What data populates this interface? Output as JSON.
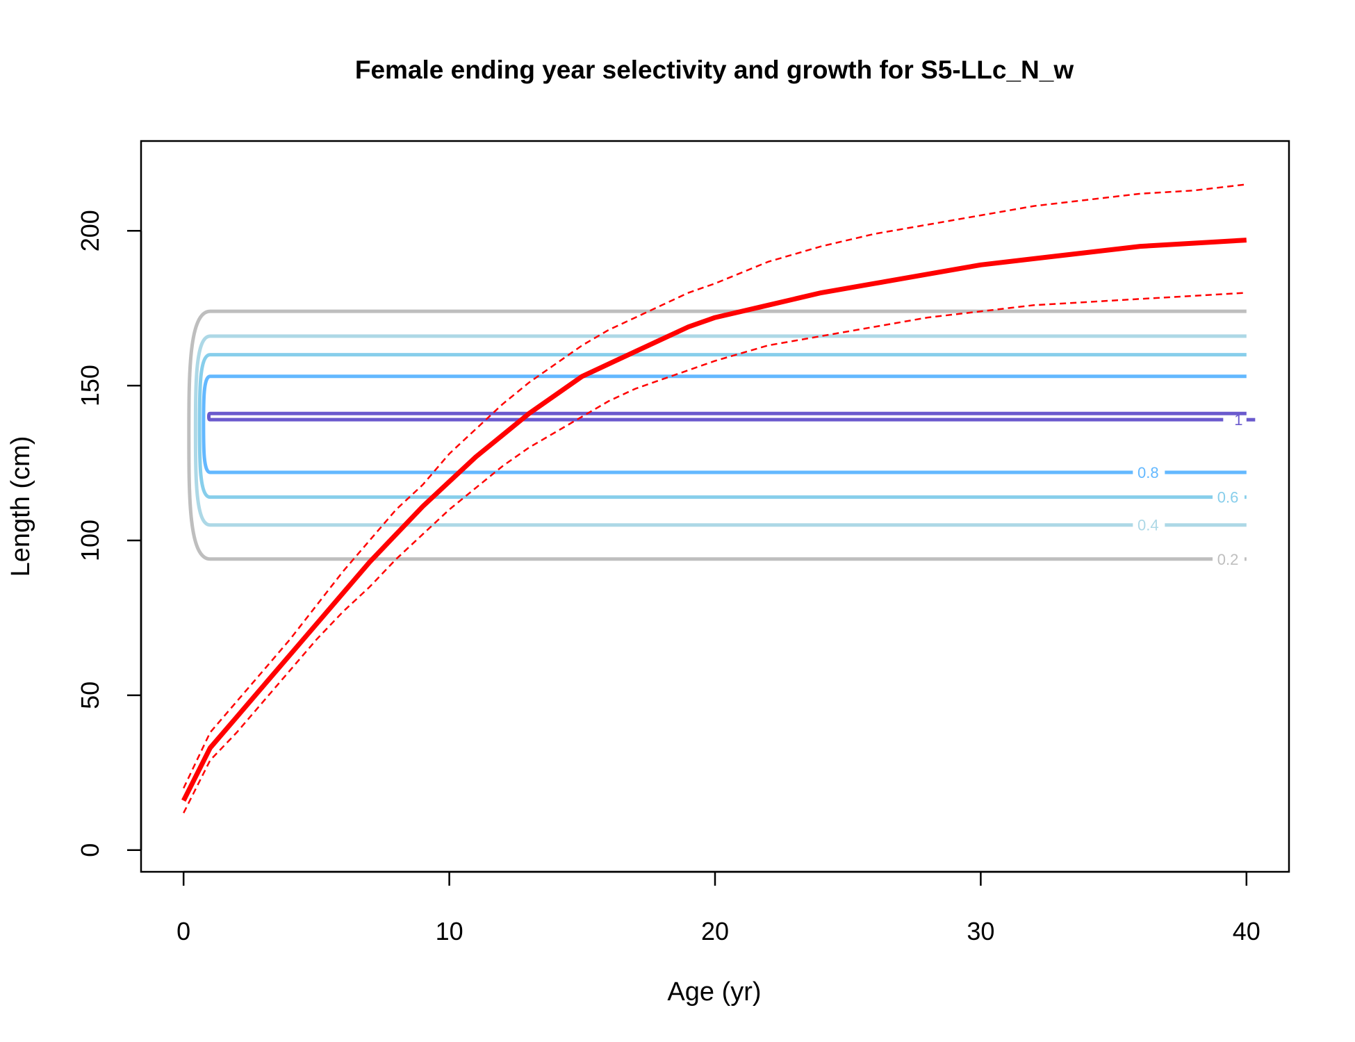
{
  "chart_data": {
    "type": "line",
    "title": "Female ending year selectivity and growth for S5-LLc_N_w",
    "xlabel": "Age (yr)",
    "ylabel": "Length (cm)",
    "xlim": [
      -1.6,
      41.6
    ],
    "ylim": [
      -7,
      229
    ],
    "x_ticks": [
      0,
      10,
      20,
      30,
      40
    ],
    "y_ticks": [
      0,
      50,
      100,
      150,
      200
    ],
    "grid": false,
    "legend": "none",
    "growth": {
      "color": "#ff0000",
      "mean": {
        "x": [
          0,
          1,
          2,
          3,
          4,
          5,
          6,
          7,
          8,
          9,
          10,
          11,
          12,
          13,
          14,
          15,
          16,
          17,
          18,
          19,
          20,
          22,
          24,
          26,
          28,
          30,
          32,
          34,
          36,
          38,
          40
        ],
        "y": [
          16,
          33,
          43,
          53,
          63,
          73,
          83,
          93,
          102,
          111,
          119,
          127,
          134,
          141,
          147,
          153,
          157,
          161,
          165,
          169,
          172,
          176,
          180,
          183,
          186,
          189,
          191,
          193,
          195,
          196,
          197
        ]
      },
      "upper": {
        "x": [
          0,
          1,
          2,
          3,
          4,
          5,
          6,
          7,
          8,
          9,
          10,
          11,
          12,
          13,
          14,
          15,
          16,
          17,
          18,
          19,
          20,
          22,
          24,
          26,
          28,
          30,
          32,
          34,
          36,
          38,
          40
        ],
        "y": [
          20,
          38,
          48,
          58,
          68,
          79,
          90,
          100,
          110,
          118,
          128,
          136,
          144,
          151,
          157,
          163,
          168,
          172,
          176,
          180,
          183,
          190,
          195,
          199,
          202,
          205,
          208,
          210,
          212,
          213,
          215
        ]
      },
      "lower": {
        "x": [
          0,
          1,
          2,
          3,
          4,
          5,
          6,
          7,
          8,
          9,
          10,
          11,
          12,
          13,
          14,
          15,
          16,
          17,
          18,
          19,
          20,
          22,
          24,
          26,
          28,
          30,
          32,
          34,
          36,
          38,
          40
        ],
        "y": [
          12,
          29,
          38,
          48,
          58,
          68,
          77,
          85,
          94,
          102,
          110,
          117,
          124,
          130,
          135,
          140,
          145,
          149,
          152,
          155,
          158,
          163,
          166,
          169,
          172,
          174,
          176,
          177,
          178,
          179,
          180
        ]
      }
    },
    "selectivity_contours": [
      {
        "label": "0.2",
        "color": "#bebebe",
        "low": 94,
        "high": 174,
        "x_left": 0.2,
        "label_x": 39.3
      },
      {
        "label": "0.4",
        "color": "#add8e6",
        "low": 105,
        "high": 166,
        "x_left": 0.45,
        "label_x": 36.3
      },
      {
        "label": "0.6",
        "color": "#87ceeb",
        "low": 114,
        "high": 160,
        "x_left": 0.6,
        "label_x": 39.3
      },
      {
        "label": "0.8",
        "color": "#63b8ff",
        "low": 122,
        "high": 153,
        "x_left": 0.75,
        "label_x": 36.3
      },
      {
        "label": "1",
        "color": "#6a5acd",
        "low": 139,
        "high": 141,
        "x_left": 0.95,
        "label_x": 39.7
      }
    ]
  }
}
